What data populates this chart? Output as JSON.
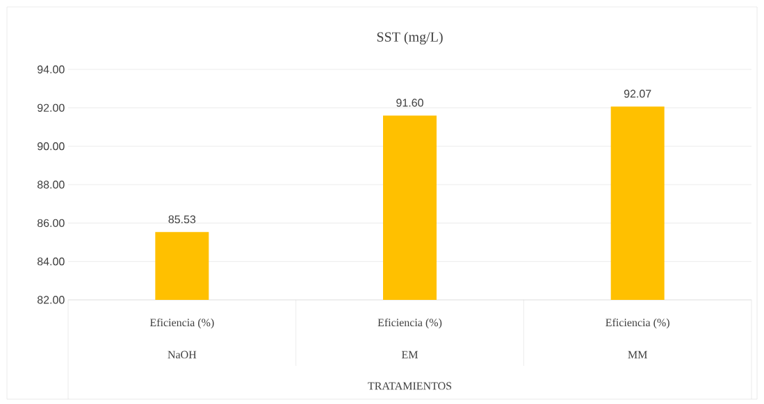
{
  "chart_data": {
    "type": "bar",
    "title": "SST (mg/L)",
    "categories": [
      "NaOH",
      "EM",
      "MM"
    ],
    "values": [
      85.53,
      91.6,
      92.07
    ],
    "value_labels": [
      "85.53",
      "91.60",
      "92.07"
    ],
    "color": "#ffc000",
    "xlabel": "TRATAMIENTOS",
    "annotations": [
      "Eficiencia (%)",
      "Eficiencia (%)",
      "Eficiencia (%)"
    ],
    "ylim": [
      82,
      94
    ],
    "yticks": [
      {
        "value": 82,
        "label": "82.00"
      },
      {
        "value": 84,
        "label": "84.00"
      },
      {
        "value": 86,
        "label": "86.00"
      },
      {
        "value": 88,
        "label": "88.00"
      },
      {
        "value": 90,
        "label": "90.00"
      },
      {
        "value": 92,
        "label": "92.00"
      },
      {
        "value": 94,
        "label": "94.00"
      }
    ],
    "grid": "y"
  }
}
